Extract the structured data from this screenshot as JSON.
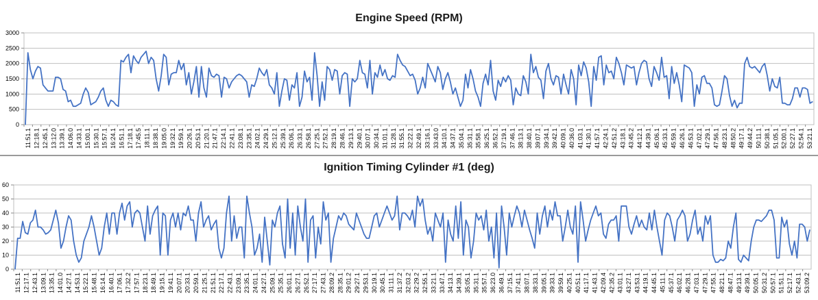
{
  "chart_data": [
    {
      "type": "line",
      "title": "Engine Speed (RPM)",
      "xlabel": "",
      "ylabel": "",
      "ylim": [
        0,
        3000
      ],
      "yticks": [
        "0",
        "500",
        "1000",
        "1500",
        "2000",
        "2500",
        "3000"
      ],
      "grid": true,
      "legend": "none",
      "color": "#4472C4",
      "x_tick_labels": [
        "11:51.1",
        "12:18.1",
        "12:45.1",
        "13:12.0",
        "13:39.1",
        "14:06.0",
        "14:33.1",
        "15:00.1",
        "15:30.1",
        "15:57.1",
        "16:24.1",
        "16:51.1",
        "17:18.1",
        "17:45.5",
        "18:11.1",
        "18:38.1",
        "19:05.0",
        "19:32.1",
        "19:59.1",
        "20:26.1",
        "20:53.1",
        "21:20.1",
        "21:47.1",
        "22:14.1",
        "22:41.1",
        "23:08.1",
        "23:35.1",
        "24:02.1",
        "24:29.1",
        "25:12.1",
        "25:39.1",
        "26:06.1",
        "26:33.1",
        "26:58.1",
        "27:25.1",
        "27:52.1",
        "28:19.1",
        "28:46.1",
        "29:13.1",
        "29:40.1",
        "30:07.1",
        "30:34.1",
        "31:01.1",
        "31:28.1",
        "31:55.1",
        "32:22.1",
        "32:49.1",
        "33:16.1",
        "33:43.0",
        "34:10.1",
        "34:37.1",
        "35:04.1",
        "35:31.1",
        "35:58.1",
        "36:25.1",
        "36:52.1",
        "37:19.1",
        "37:46.1",
        "38:13.1",
        "38:40.1",
        "39:07.1",
        "39:34.1",
        "39:42.1",
        "40:09.1",
        "40:36.0",
        "41:03.1",
        "41:30.1",
        "41:57.1",
        "42:24.1",
        "42:51.2",
        "43:18.1",
        "43:45.2",
        "44:12.1",
        "44:39.1",
        "45:06.1",
        "45:33.1",
        "45:59.1",
        "46:26.1",
        "46:53.1",
        "47:02.1",
        "47:29.1",
        "47:56.1",
        "48:23.1",
        "48:50.2",
        "49:17.1",
        "49:44.2",
        "50:11.1",
        "50:38.1",
        "51:05.1",
        "52:00.1",
        "52:27.1",
        "52:54.1",
        "53:21.1"
      ],
      "values": [
        0,
        2350,
        1800,
        1500,
        1750,
        1900,
        1850,
        1300,
        1200,
        1100,
        1100,
        1100,
        1550,
        1550,
        1500,
        1150,
        1100,
        750,
        800,
        600,
        600,
        650,
        700,
        1000,
        1200,
        1050,
        650,
        700,
        750,
        900,
        1100,
        1200,
        800,
        600,
        800,
        750,
        650,
        600,
        2100,
        2050,
        2200,
        2300,
        1700,
        2250,
        2100,
        2000,
        2200,
        2300,
        2400,
        2000,
        2200,
        2100,
        1500,
        1100,
        1600,
        2300,
        2200,
        1300,
        1650,
        1700,
        1700,
        2100,
        1800,
        2000,
        1300,
        1700,
        1000,
        1400,
        1900,
        900,
        1900,
        1200,
        900,
        1850,
        1600,
        1550,
        1650,
        1600,
        900,
        1550,
        1500,
        1200,
        1400,
        1500,
        1600,
        1650,
        1600,
        1500,
        1400,
        900,
        1300,
        1250,
        1500,
        1850,
        1700,
        1600,
        1800,
        1300,
        1200,
        1000,
        1700,
        600,
        1100,
        1500,
        1450,
        800,
        1300,
        1200,
        1700,
        600,
        900,
        1750,
        1400,
        1550,
        800,
        2350,
        1600,
        600,
        1400,
        800,
        1900,
        1800,
        1450,
        1800,
        1750,
        1000,
        1600,
        1700,
        1650,
        600,
        1500,
        1400,
        1500,
        2100,
        1700,
        1650,
        1200,
        2100,
        1000,
        1700,
        1550,
        1950,
        1600,
        1800,
        1500,
        1450,
        1600,
        1550,
        2300,
        2100,
        1950,
        1900,
        1750,
        1600,
        1650,
        1450,
        1000,
        1200,
        1550,
        1200,
        2000,
        1800,
        1600,
        1400,
        1900,
        1700,
        1150,
        1500,
        1700,
        1400,
        1000,
        1200,
        900,
        600,
        800,
        1650,
        1200,
        1800,
        1500,
        1100,
        900,
        600,
        1350,
        1650,
        1300,
        2100,
        1100,
        800,
        1450,
        1250,
        1550,
        1400,
        1600,
        1450,
        650,
        1200,
        1000,
        950,
        1600,
        1400,
        1000,
        2300,
        1700,
        1900,
        1550,
        1450,
        850,
        1750,
        2000,
        1500,
        1300,
        1600,
        1550,
        1000,
        1650,
        1300,
        1000,
        1800,
        1500,
        650,
        1950,
        1600,
        2050,
        1850,
        1400,
        600,
        1900,
        1450,
        2200,
        2250,
        1300,
        1950,
        1700,
        1750,
        1500,
        2200,
        2000,
        1700,
        1300,
        1950,
        1900,
        1850,
        1900,
        1300,
        1700,
        2000,
        2100,
        2050,
        1500,
        1250,
        1900,
        1700,
        1450,
        2200,
        1550,
        1600,
        850,
        1900,
        1350,
        1700,
        1300,
        750,
        1950,
        1900,
        1850,
        1700,
        600,
        1300,
        1000,
        1550,
        1600,
        1350,
        1350,
        1200,
        650,
        600,
        650,
        1100,
        1600,
        1500,
        950,
        600,
        800,
        550,
        700,
        700,
        2000,
        2200,
        1900,
        1850,
        1900,
        1800,
        1700,
        1900,
        2000,
        1600,
        1100,
        1500,
        1250,
        1200,
        1550,
        700,
        700,
        650,
        650,
        850,
        1200,
        1200,
        900,
        1200,
        1200,
        1150,
        700,
        750
      ]
    },
    {
      "type": "line",
      "title": "Ignition Timing Cylinder #1 (deg)",
      "xlabel": "",
      "ylabel": "",
      "ylim": [
        0,
        60
      ],
      "yticks": [
        "0",
        "10",
        "20",
        "30",
        "40",
        "50",
        "60"
      ],
      "grid": true,
      "legend": "none",
      "color": "#4472C4",
      "x_tick_labels": [
        "11:51.1",
        "12:17.1",
        "12:43.1",
        "13:09.1",
        "13:35.1",
        "14:01.0",
        "14:27.1",
        "14:53.1",
        "15:22.1",
        "15:48.1",
        "16:14.1",
        "16:40.1",
        "17:06.1",
        "17:32.2",
        "17:57.1",
        "18:23.1",
        "18:49.1",
        "19:15.1",
        "19:41.1",
        "20:07.1",
        "20:33.1",
        "20:59.1",
        "21:25.1",
        "21:51.1",
        "22:17.1",
        "22:43.1",
        "23:09.1",
        "23:35.1",
        "24:01.1",
        "24:27.1",
        "25:09.1",
        "25:35.1",
        "26:01.1",
        "26:27.1",
        "26:52.1",
        "27:17.1",
        "27:43.1",
        "28:09.2",
        "28:35.1",
        "29:01.2",
        "29:27.1",
        "29:53.1",
        "30:19.1",
        "30:45.1",
        "31:11.1",
        "31:37.2",
        "32:03.2",
        "32:29.2",
        "32:55.1",
        "33:21.1",
        "33:47.1",
        "34:13.1",
        "34:39.1",
        "35:05.1",
        "35:31.1",
        "35:57.1",
        "36:23.0",
        "36:49.1",
        "37:15.1",
        "37:41.1",
        "38:07.1",
        "38:33.1",
        "39:05.1",
        "39:33.1",
        "39:59.1",
        "40:25.1",
        "40:51.1",
        "41:17.1",
        "41:43.1",
        "42:09.4",
        "42:35.2",
        "43:01.1",
        "43:27.1",
        "43:53.1",
        "44:19.1",
        "44:45.1",
        "45:11.1",
        "45:37.1",
        "46:02.1",
        "46:28.1",
        "47:03.1",
        "47:29.1",
        "47:55.1",
        "48:21.1",
        "48:47.1",
        "49:13.1",
        "49:39.1",
        "50:05.1",
        "50:31.2",
        "50:57.1",
        "51:51.1",
        "52:17.1",
        "52:43.1",
        "53:09.2"
      ],
      "values": [
        0,
        22,
        22,
        34,
        26,
        25,
        33,
        35,
        42,
        30,
        30,
        28,
        25,
        26,
        28,
        35,
        42,
        33,
        15,
        20,
        30,
        38,
        35,
        20,
        10,
        5,
        8,
        20,
        25,
        30,
        38,
        30,
        20,
        10,
        15,
        30,
        40,
        25,
        40,
        40,
        25,
        40,
        47,
        35,
        45,
        48,
        30,
        40,
        42,
        40,
        30,
        20,
        45,
        25,
        38,
        42,
        45,
        10,
        40,
        38,
        10,
        35,
        40,
        30,
        40,
        28,
        40,
        38,
        45,
        35,
        35,
        20,
        40,
        48,
        30,
        35,
        38,
        28,
        32,
        35,
        15,
        8,
        15,
        40,
        52,
        20,
        38,
        22,
        30,
        30,
        8,
        52,
        40,
        30,
        10,
        15,
        25,
        5,
        37,
        20,
        3,
        35,
        30,
        40,
        45,
        18,
        8,
        50,
        15,
        40,
        10,
        45,
        30,
        20,
        50,
        5,
        35,
        38,
        8,
        30,
        18,
        48,
        35,
        40,
        5,
        22,
        30,
        38,
        35,
        40,
        38,
        32,
        30,
        28,
        40,
        35,
        30,
        25,
        22,
        22,
        30,
        38,
        40,
        30,
        35,
        40,
        45,
        40,
        35,
        38,
        52,
        28,
        40,
        40,
        38,
        35,
        42,
        30,
        52,
        45,
        50,
        35,
        25,
        30,
        20,
        40,
        35,
        30,
        40,
        5,
        35,
        25,
        20,
        45,
        22,
        48,
        10,
        35,
        30,
        8,
        20,
        40,
        35,
        38,
        28,
        42,
        20,
        30,
        8,
        40,
        1,
        45,
        30,
        10,
        40,
        30,
        38,
        45,
        40,
        30,
        42,
        35,
        28,
        22,
        15,
        40,
        25,
        38,
        45,
        30,
        42,
        35,
        48,
        38,
        38,
        20,
        30,
        42,
        30,
        25,
        45,
        5,
        48,
        35,
        20,
        28,
        35,
        40,
        45,
        38,
        40,
        25,
        22,
        32,
        35,
        35,
        38,
        20,
        45,
        45,
        45,
        30,
        25,
        32,
        38,
        30,
        35,
        30,
        28,
        40,
        28,
        42,
        30,
        20,
        10,
        35,
        40,
        38,
        30,
        20,
        35,
        38,
        42,
        38,
        20,
        25,
        35,
        42,
        25,
        30,
        20,
        38,
        32,
        38,
        10,
        5,
        5,
        7,
        6,
        8,
        20,
        15,
        30,
        40,
        7,
        5,
        10,
        8,
        6,
        20,
        30,
        35,
        35,
        34,
        36,
        38,
        42,
        42,
        35,
        8,
        8,
        37,
        30,
        35,
        18,
        10,
        20,
        8,
        32,
        32,
        30,
        20,
        28
      ]
    }
  ]
}
